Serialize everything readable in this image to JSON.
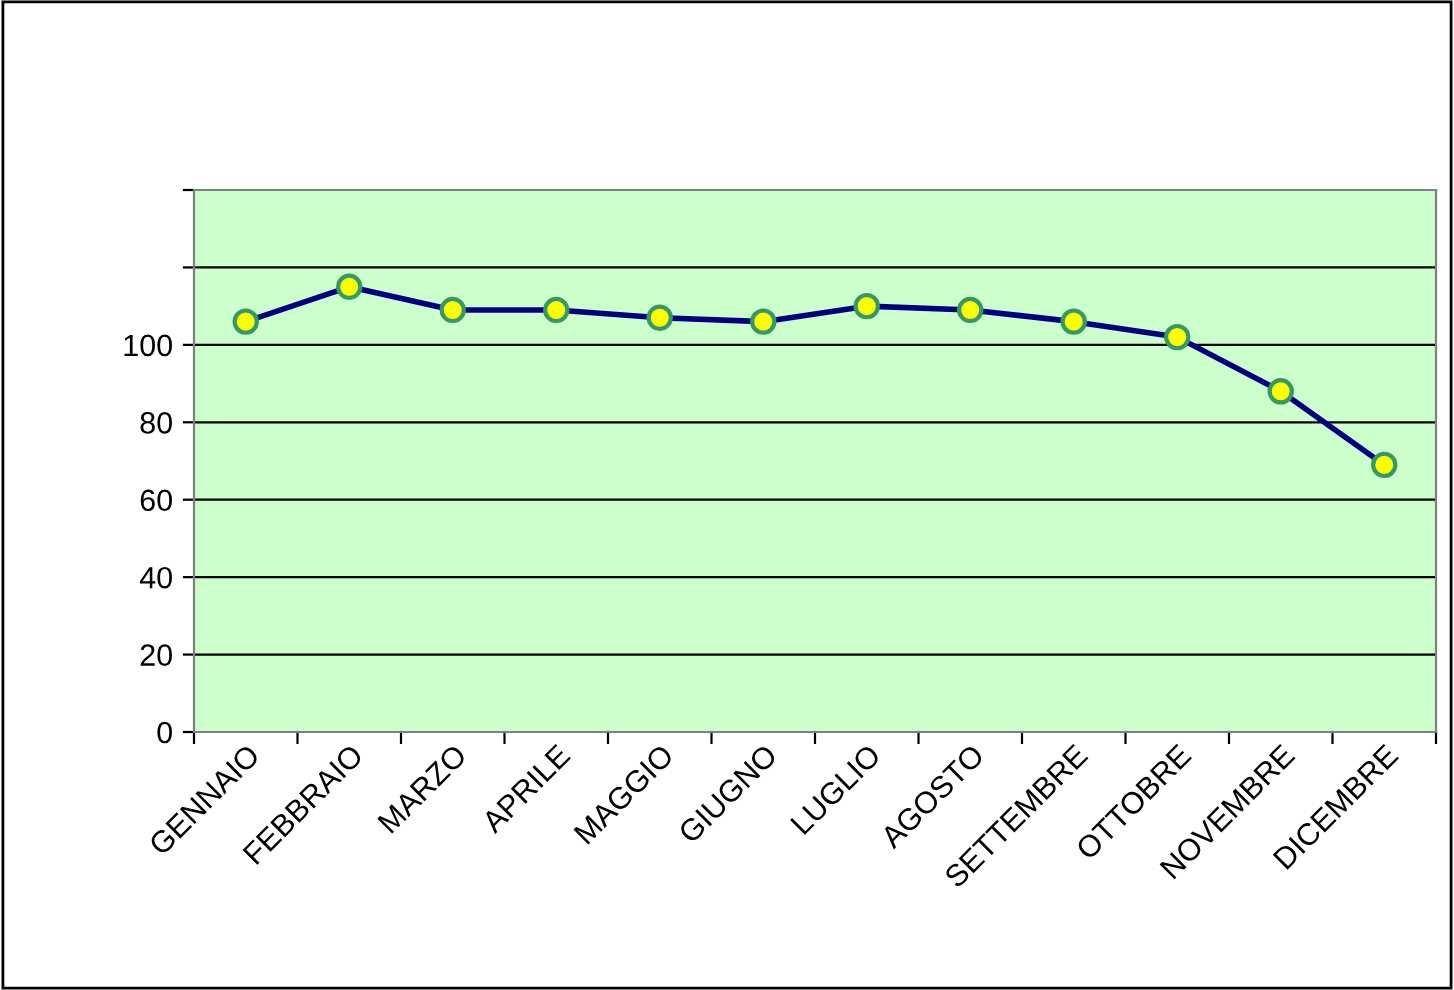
{
  "chart_data": {
    "type": "line",
    "categories": [
      "GENNAIO",
      "FEBBRAIO",
      "MARZO",
      "APRILE",
      "MAGGIO",
      "GIUGNO",
      "LUGLIO",
      "AGOSTO",
      "SETTEMBRE",
      "OTTOBRE",
      "NOVEMBRE",
      "DICEMBRE"
    ],
    "series": [
      {
        "color": "#000080",
        "values": [
          106,
          115,
          109,
          109,
          107,
          106,
          110,
          109,
          106,
          102,
          88,
          69
        ]
      }
    ],
    "ylim": [
      0,
      140
    ],
    "yticks": [
      0,
      20,
      40,
      60,
      80,
      100,
      {
        "value": 120,
        "label": null
      },
      {
        "value": 140,
        "label": null
      }
    ],
    "grid": "y",
    "marker": "circle",
    "line_style": "solid"
  }
}
